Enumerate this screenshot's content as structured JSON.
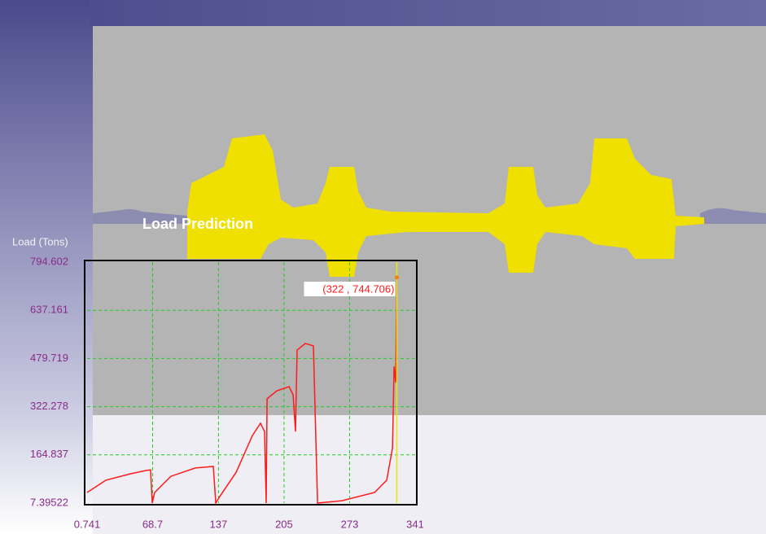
{
  "chart_data": {
    "type": "line",
    "title": "Load Prediction",
    "y_label": "Load (Tons)",
    "color": "#ff1a1a",
    "grid": true,
    "xlim": [
      0.741,
      341
    ],
    "ylim": [
      7.39522,
      794.602
    ],
    "xticks": [
      0.741,
      68.7,
      137,
      205,
      273,
      341
    ],
    "yticks": [
      7.39522,
      164.837,
      322.278,
      479.719,
      637.161,
      794.602
    ],
    "x": [
      0.741,
      20.2,
      45.5,
      62.4,
      66.6,
      68.3,
      70.8,
      87.7,
      113,
      131.6,
      134.2,
      138.4,
      155.3,
      172.2,
      180.6,
      184.8,
      186.5,
      187.4,
      197.5,
      210.2,
      214.4,
      216.9,
      218.6,
      227,
      235.5,
      239.8,
      265.1,
      298.9,
      311.5,
      317.5,
      319.1,
      320.8,
      322
    ],
    "values": [
      42,
      82,
      103,
      114,
      116,
      7.4,
      42,
      95,
      122,
      127,
      7.4,
      29,
      108,
      228,
      268,
      241,
      7.4,
      348,
      374,
      388,
      361,
      241,
      507,
      529,
      521,
      7.4,
      15,
      42,
      82,
      188,
      454,
      401,
      744.706
    ],
    "annotation": {
      "x": 322,
      "y": 744.706,
      "label": "(322 , 744.706)"
    }
  }
}
